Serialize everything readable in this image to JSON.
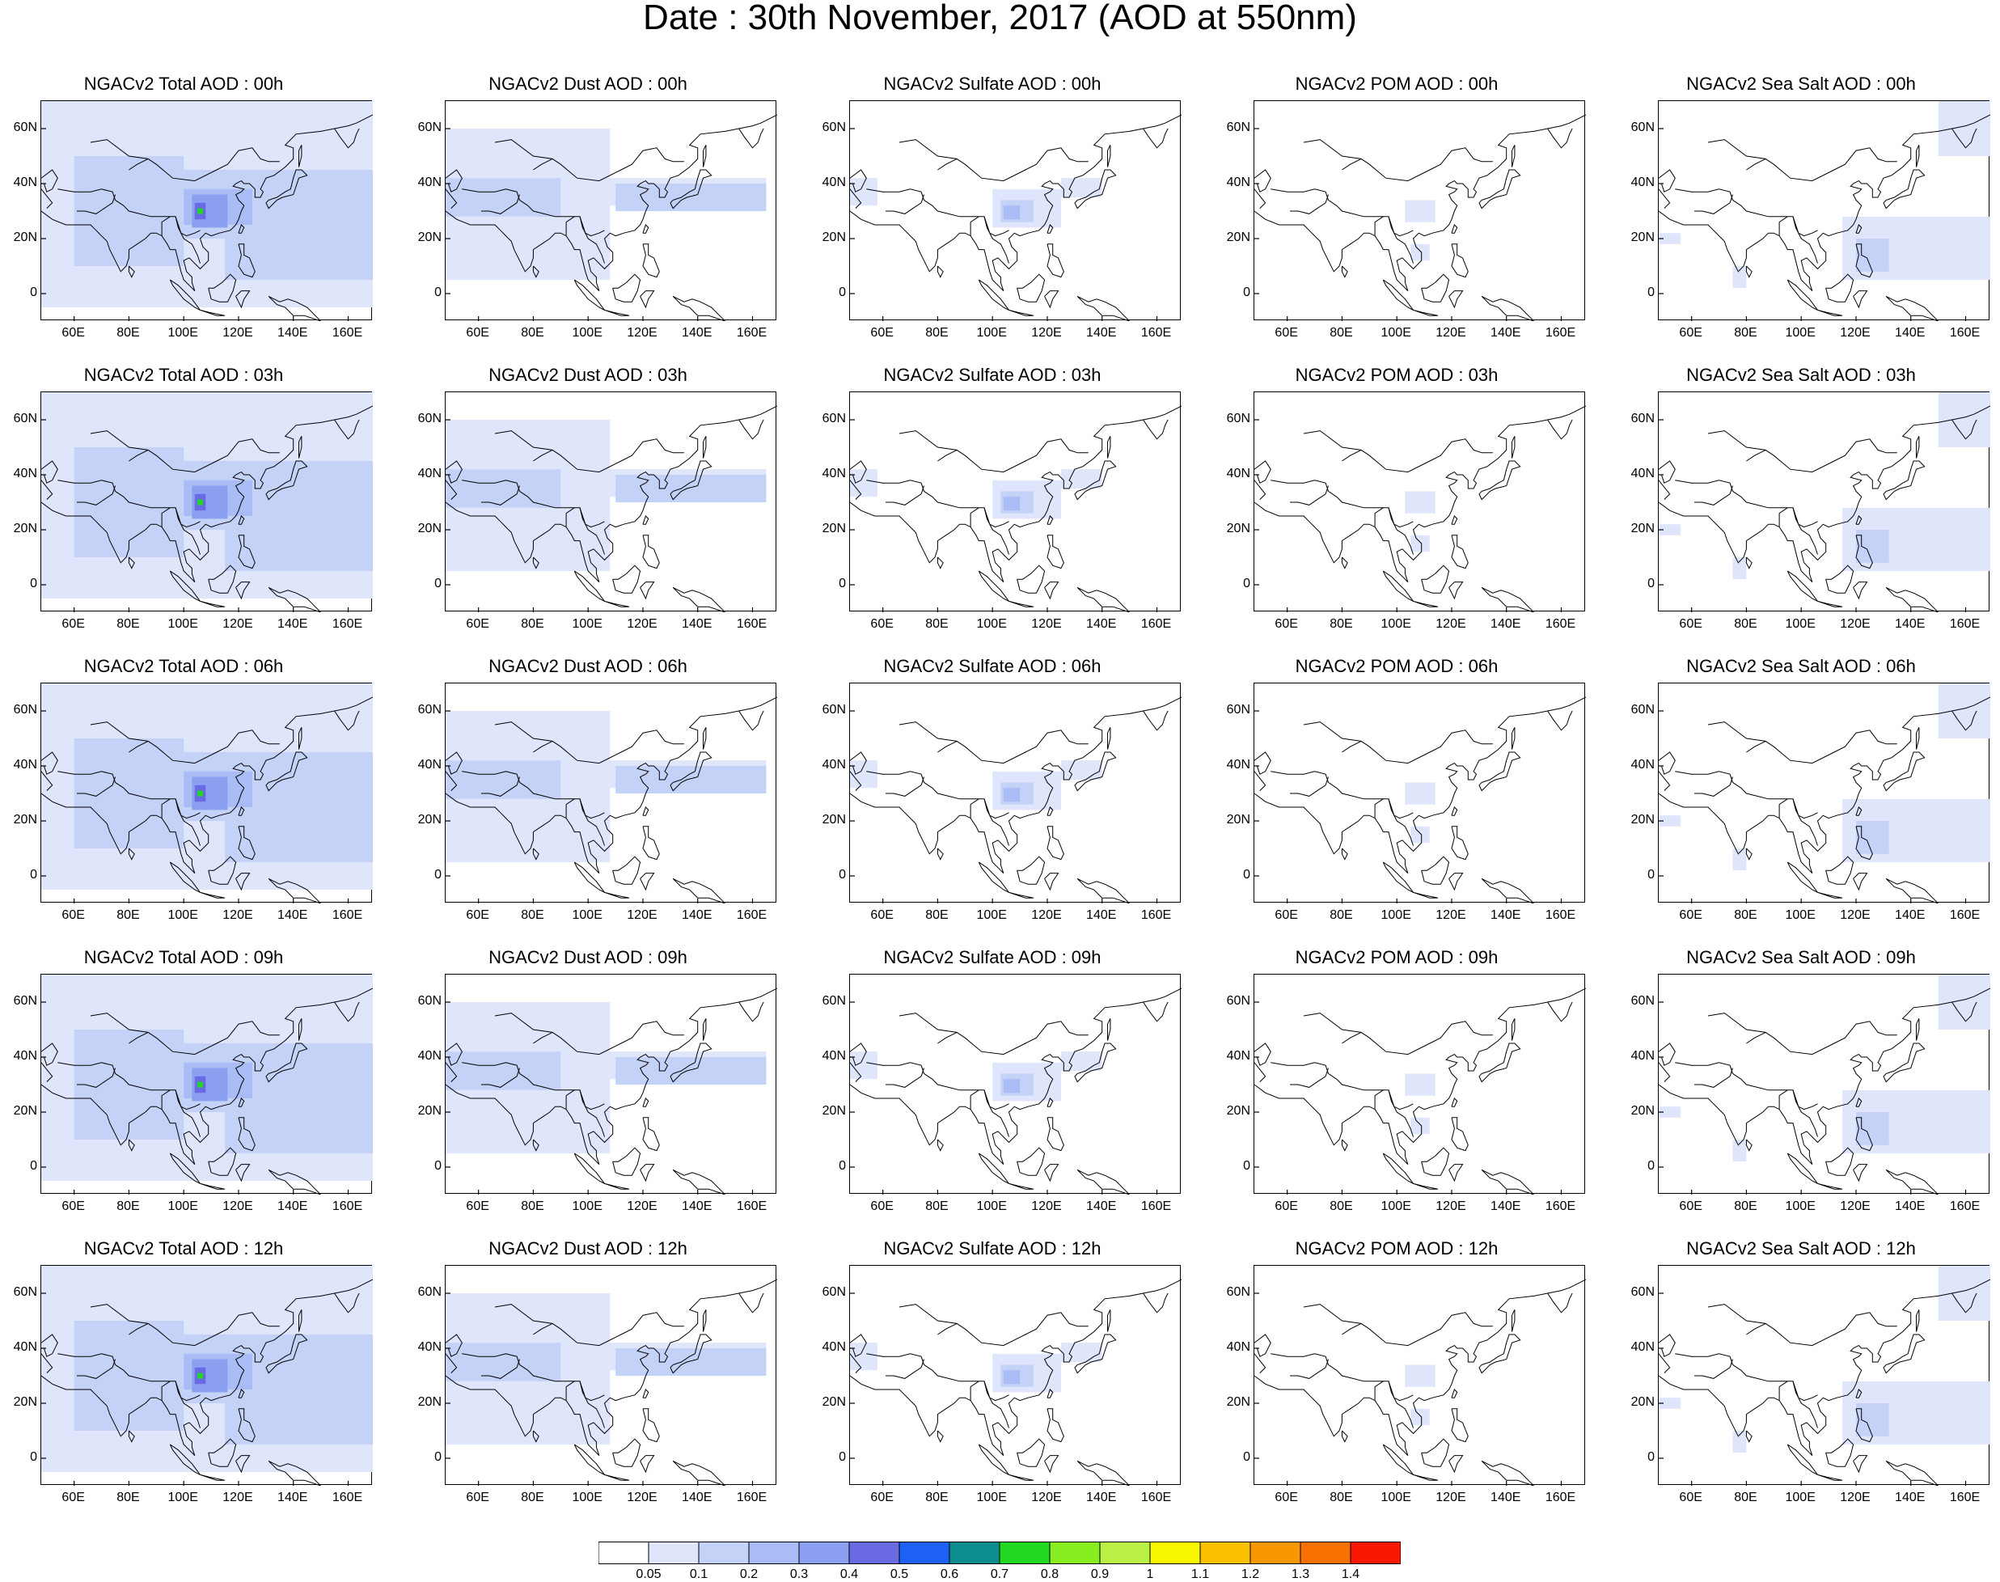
{
  "title": "Date : 30th November, 2017 (AOD at 550nm)",
  "axes": {
    "lat_labels": [
      "60N",
      "40N",
      "20N",
      "0"
    ],
    "lon_labels": [
      "60E",
      "80E",
      "100E",
      "120E",
      "140E",
      "160E"
    ]
  },
  "panels": [
    {
      "title": "NGACv2 Total AOD : 00h",
      "species": "total",
      "hour": "00h"
    },
    {
      "title": "NGACv2 Dust AOD : 00h",
      "species": "dust",
      "hour": "00h"
    },
    {
      "title": "NGACv2 Sulfate AOD : 00h",
      "species": "sulfate",
      "hour": "00h"
    },
    {
      "title": "NGACv2 POM AOD : 00h",
      "species": "pom",
      "hour": "00h"
    },
    {
      "title": "NGACv2 Sea Salt AOD : 00h",
      "species": "seasalt",
      "hour": "00h"
    },
    {
      "title": "NGACv2 Total AOD : 03h",
      "species": "total",
      "hour": "03h"
    },
    {
      "title": "NGACv2 Dust AOD : 03h",
      "species": "dust",
      "hour": "03h"
    },
    {
      "title": "NGACv2 Sulfate AOD : 03h",
      "species": "sulfate",
      "hour": "03h"
    },
    {
      "title": "NGACv2 POM AOD : 03h",
      "species": "pom",
      "hour": "03h"
    },
    {
      "title": "NGACv2 Sea Salt AOD : 03h",
      "species": "seasalt",
      "hour": "03h"
    },
    {
      "title": "NGACv2 Total AOD : 06h",
      "species": "total",
      "hour": "06h"
    },
    {
      "title": "NGACv2 Dust AOD : 06h",
      "species": "dust",
      "hour": "06h"
    },
    {
      "title": "NGACv2 Sulfate AOD : 06h",
      "species": "sulfate",
      "hour": "06h"
    },
    {
      "title": "NGACv2 POM AOD : 06h",
      "species": "pom",
      "hour": "06h"
    },
    {
      "title": "NGACv2 Sea Salt AOD : 06h",
      "species": "seasalt",
      "hour": "06h"
    },
    {
      "title": "NGACv2 Total AOD : 09h",
      "species": "total",
      "hour": "09h"
    },
    {
      "title": "NGACv2 Dust AOD : 09h",
      "species": "dust",
      "hour": "09h"
    },
    {
      "title": "NGACv2 Sulfate AOD : 09h",
      "species": "sulfate",
      "hour": "09h"
    },
    {
      "title": "NGACv2 POM AOD : 09h",
      "species": "pom",
      "hour": "09h"
    },
    {
      "title": "NGACv2 Sea Salt  AOD : 09h",
      "species": "seasalt",
      "hour": "09h"
    },
    {
      "title": "NGACv2 Total AOD  : 12h",
      "species": "total",
      "hour": "12h"
    },
    {
      "title": "NGACv2 Dust AOD : 12h",
      "species": "dust",
      "hour": "12h"
    },
    {
      "title": "NGACv2 Sulfate AOD : 12h",
      "species": "sulfate",
      "hour": "12h"
    },
    {
      "title": "NGACv2 POM  AOD : 12h",
      "species": "pom",
      "hour": "12h"
    },
    {
      "title": "NGACv2 Sea Salt  AOD : 12h",
      "species": "seasalt",
      "hour": "12h"
    }
  ],
  "colorbar": {
    "labels": [
      "0.05",
      "0.1",
      "0.2",
      "0.3",
      "0.4",
      "0.5",
      "0.6",
      "0.7",
      "0.8",
      "0.9",
      "1",
      "1.1",
      "1.2",
      "1.3",
      "1.4"
    ],
    "colors": [
      "#ffffff",
      "#dfe6fb",
      "#c5d2f8",
      "#a9bcf5",
      "#8c9ff0",
      "#6a6be3",
      "#1e5ff5",
      "#0c8c8c",
      "#22d822",
      "#88ee22",
      "#bbf044",
      "#f8f800",
      "#f8c000",
      "#f89800",
      "#f87000",
      "#f81800"
    ]
  }
}
